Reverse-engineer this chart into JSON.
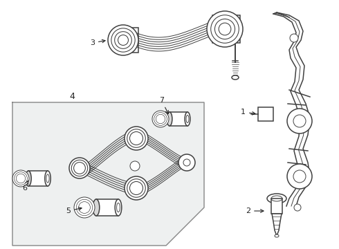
{
  "bg_color": "#ffffff",
  "box_bg": "#eef0f0",
  "line_color": "#404040",
  "label_color": "#222222",
  "fig_width": 4.9,
  "fig_height": 3.6,
  "dpi": 100
}
